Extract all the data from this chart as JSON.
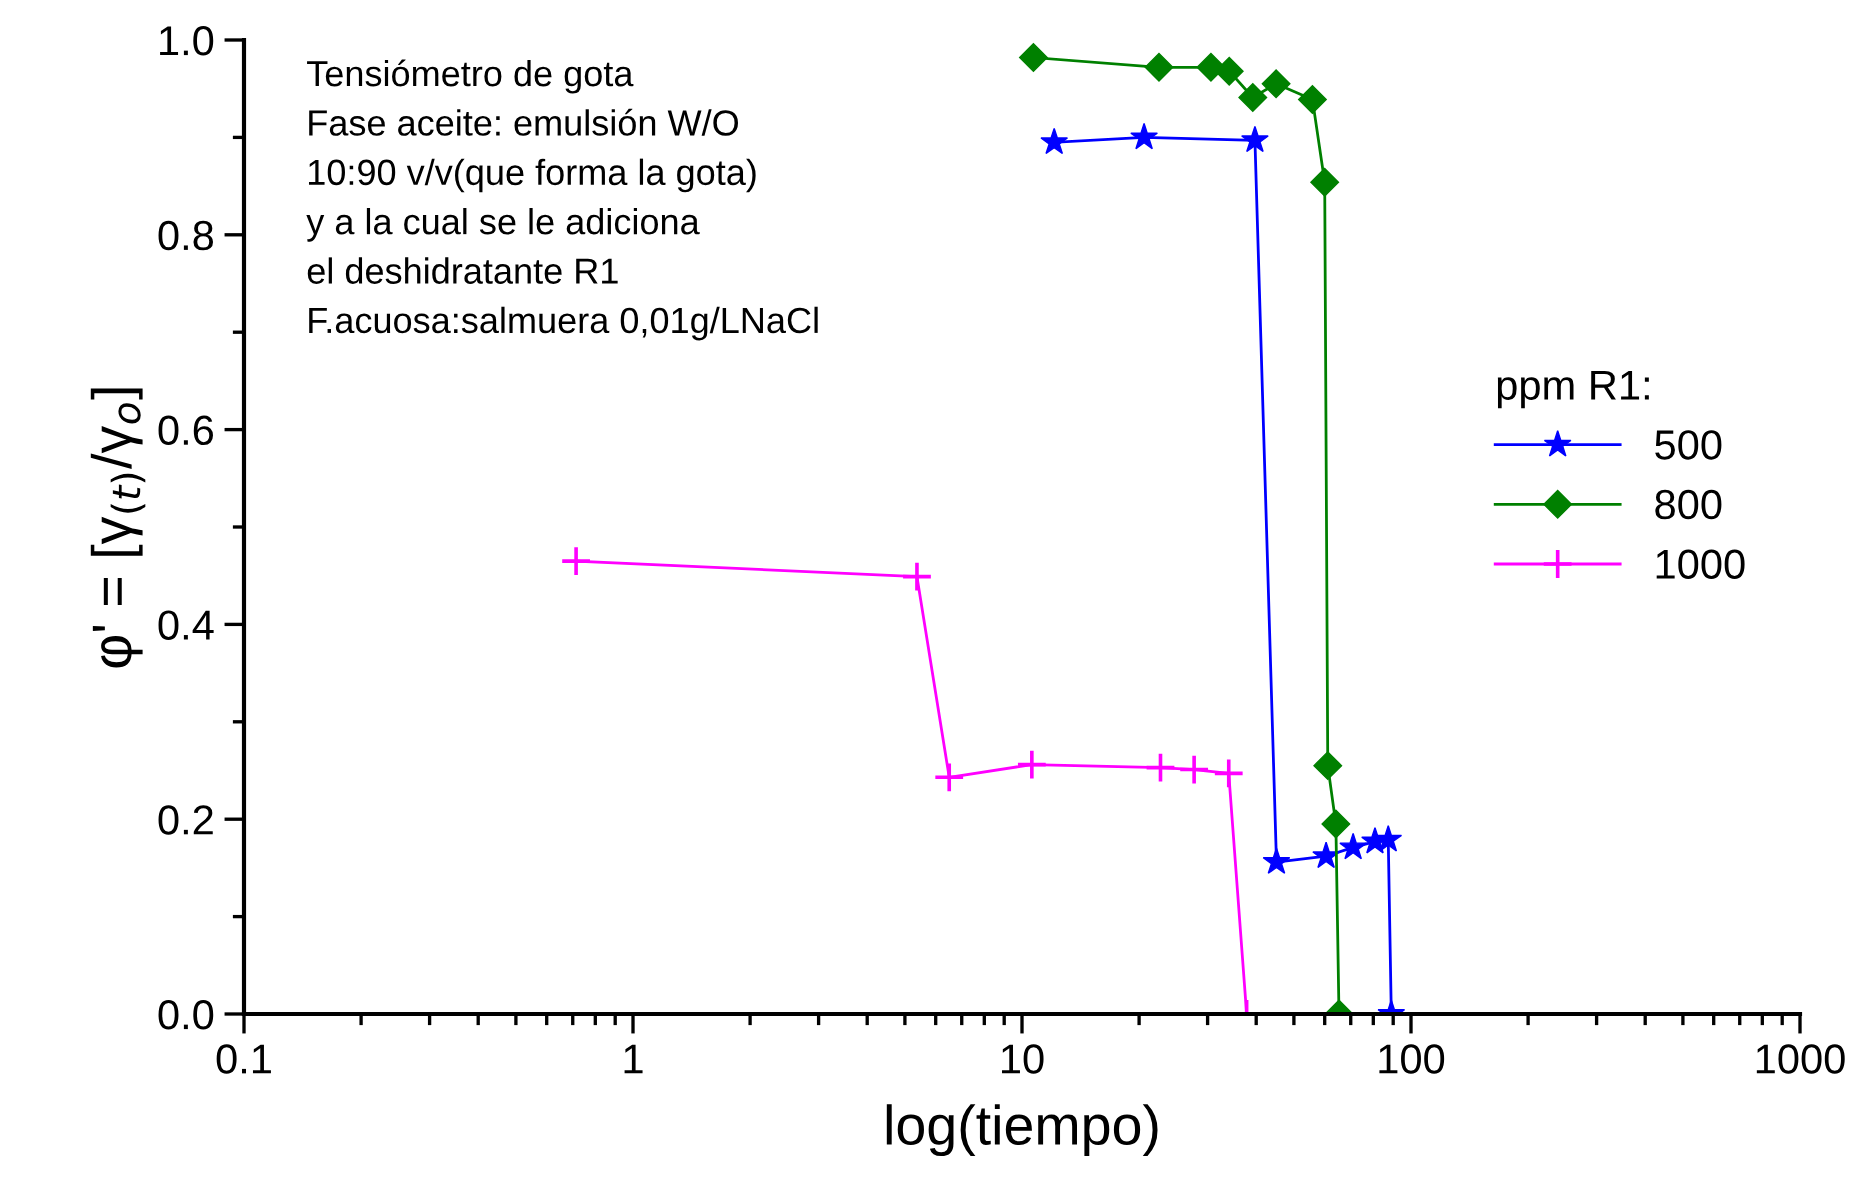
{
  "chart_data": {
    "type": "line",
    "xlabel": "log(tiempo)",
    "ylabel": "φ' = [γ$_{(t)}$/γ$_{o}$]",
    "legend_title": "ppm R1:",
    "annotations": [
      "Tensiómetro de gota\nFase aceite: emulsión W/O\n10:90 v/v(que forma la gota)\ny a la cual se le adiciona\nel deshidratante R1\nF.acuosa:salmuera 0,01g/LNaCl"
    ],
    "log": "x",
    "xlim": [
      0.1,
      1000
    ],
    "xticks": [
      {
        "value": 0.1,
        "label": "0.1"
      },
      1,
      10,
      100,
      1000
    ],
    "ylim": [
      0,
      1.0
    ],
    "yticks": [
      {
        "value": 0,
        "label": "0.0"
      },
      {
        "value": 0.2,
        "label": "0.2"
      },
      {
        "value": 0.4,
        "label": "0.4"
      },
      {
        "value": 0.6,
        "label": "0.6"
      },
      {
        "value": 0.8,
        "label": "0.8"
      },
      {
        "value": 1.0,
        "label": "1.0"
      }
    ],
    "grid": false,
    "legend": "right",
    "line_style": "solid",
    "series": [
      {
        "name": "500",
        "color": "#0000ff",
        "marker": "star",
        "x": [
          12.1,
          20.6,
          39.7,
          45.1,
          60.5,
          71,
          80.8,
          87.4,
          89
        ],
        "values": [
          0.895,
          0.9,
          0.897,
          0.156,
          0.162,
          0.171,
          0.177,
          0.179,
          0
        ]
      },
      {
        "name": "800",
        "color": "#008000",
        "marker": "diamond",
        "x": [
          10.7,
          22.5,
          30.6,
          34.1,
          39.2,
          45,
          55.8,
          60,
          61.1,
          64.1,
          65.3
        ],
        "values": [
          0.982,
          0.972,
          0.972,
          0.968,
          0.941,
          0.955,
          0.939,
          0.854,
          0.255,
          0.195,
          0
        ]
      },
      {
        "name": "1000",
        "color": "#ff00ff",
        "marker": "cross",
        "x": [
          0.714,
          5.37,
          6.5,
          10.6,
          22.7,
          27.7,
          34,
          37.8
        ],
        "values": [
          0.465,
          0.449,
          0.243,
          0.256,
          0.253,
          0.251,
          0.247,
          0
        ]
      }
    ]
  }
}
